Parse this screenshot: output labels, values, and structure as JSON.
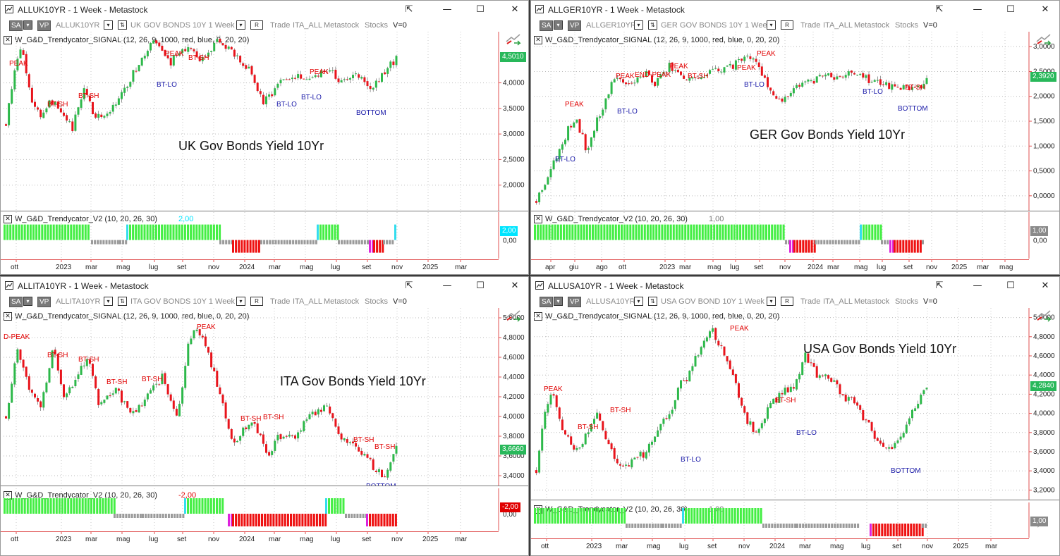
{
  "windows": [
    {
      "id": "uk",
      "title": "ALLUK10YR - 1 Week - Metastock",
      "symbol": "ALLUK10YR",
      "desc": "UK GOV BONDS 10Y  1 Week",
      "chart_title": "UK Gov Bonds Yield 10Yr",
      "signal_indicator": "W_G&D_Trendycator_SIGNAL   (12, 26, 9, 1000, red, blue, 0, 20, 20)",
      "v2_indicator": "W_G&D_Trendycator_V2   (10, 20, 26, 30)",
      "v2_value": "2,00",
      "v2_value_color": "#00e5ff",
      "v2_tag": "2,00",
      "v2_tag_color": "#00e5ff",
      "v2_axis": "0,00",
      "price_tag": "4,5010",
      "price_tag_color": "#28b85a",
      "y_ticks": [
        "4,0000",
        "3,5000",
        "3,0000",
        "2,5000",
        "2,0000"
      ],
      "x_ticks": [
        "ott",
        "2023",
        "mar",
        "mag",
        "lug",
        "set",
        "nov",
        "2024",
        "mar",
        "mag",
        "lug",
        "set",
        "nov",
        "2025",
        "mar"
      ],
      "annotations": [
        {
          "t": "PEAK",
          "c": "red"
        },
        {
          "t": "BT-SH",
          "c": "red"
        },
        {
          "t": "BT-SH",
          "c": "red"
        },
        {
          "t": "PEAK",
          "c": "red"
        },
        {
          "t": "BT-SH",
          "c": "red"
        },
        {
          "t": "BT-LO",
          "c": "blue"
        },
        {
          "t": "BT-LO",
          "c": "blue"
        },
        {
          "t": "PEAK",
          "c": "red"
        },
        {
          "t": "BT-LO",
          "c": "blue"
        },
        {
          "t": "BOTTOM",
          "c": "blue"
        }
      ]
    },
    {
      "id": "ger",
      "title": "ALLGER10YR - 1 Week - Metastock",
      "symbol": "ALLGER10YR",
      "desc": "GER GOV BONDS 10Y  1 Week",
      "chart_title": "GER Gov Bonds Yield 10Yr",
      "signal_indicator": "W_G&D_Trendycator_SIGNAL   (12, 26, 9, 1000, red, blue, 0, 20, 20)",
      "v2_indicator": "W_G&D_Trendycator_V2   (10, 20, 26, 30)",
      "v2_value": "1,00",
      "v2_value_color": "#777777",
      "v2_tag": "1,00",
      "v2_tag_color": "#8a8a8a",
      "v2_axis": "0,00",
      "price_tag": "2,3920",
      "price_tag_color": "#28b85a",
      "y_ticks": [
        "3,0000",
        "2,5000",
        "2,0000",
        "1,5000",
        "1,0000",
        "0,5000",
        "0,0000"
      ],
      "x_ticks": [
        "apr",
        "giu",
        "ago",
        "ott",
        "2023",
        "mar",
        "mag",
        "lug",
        "set",
        "nov",
        "2024",
        "mar",
        "mag",
        "lug",
        "set",
        "nov",
        "2025",
        "mar",
        "mag"
      ],
      "annotations": [
        {
          "t": "PEAK",
          "c": "red"
        },
        {
          "t": "BT-LO",
          "c": "blue"
        },
        {
          "t": "PEAK",
          "c": "red"
        },
        {
          "t": "END-PEAK",
          "c": "red"
        },
        {
          "t": "BT-LO",
          "c": "blue"
        },
        {
          "t": "PEAK",
          "c": "red"
        },
        {
          "t": "BT-SH",
          "c": "red"
        },
        {
          "t": "PEAK",
          "c": "red"
        },
        {
          "t": "PEAK",
          "c": "red"
        },
        {
          "t": "BT-LO",
          "c": "blue"
        },
        {
          "t": "BT-LO",
          "c": "blue"
        },
        {
          "t": "BT-SH",
          "c": "red"
        },
        {
          "t": "BOTTOM",
          "c": "blue"
        }
      ]
    },
    {
      "id": "ita",
      "title": "ALLITA10YR - 1 Week - Metastock",
      "symbol": "ALLITA10YR",
      "desc": "ITA GOV BONDS 10Y  1 Week",
      "chart_title": "ITA Gov Bonds Yield 10Yr",
      "signal_indicator": "W_G&D_Trendycator_SIGNAL   (12, 26, 9, 1000, red, blue, 0, 20, 20)",
      "v2_indicator": "W_G&D_Trendycator_V2   (10, 20, 26, 30)",
      "v2_value": "-2,00",
      "v2_value_color": "#e00000",
      "v2_tag": "-2,00",
      "v2_tag_color": "#e00000",
      "v2_axis": "0,00",
      "price_tag": "3,6660",
      "price_tag_color": "#28b85a",
      "y_ticks": [
        "5,0000",
        "4,8000",
        "4,6000",
        "4,4000",
        "4,2000",
        "4,0000",
        "3,8000",
        "3,6000",
        "3,4000"
      ],
      "x_ticks": [
        "ott",
        "2023",
        "mar",
        "mag",
        "lug",
        "set",
        "nov",
        "2024",
        "mar",
        "mag",
        "lug",
        "set",
        "nov",
        "2025",
        "mar"
      ],
      "annotations": [
        {
          "t": "D-PEAK",
          "c": "red"
        },
        {
          "t": "BT-SH",
          "c": "red"
        },
        {
          "t": "BT-SH",
          "c": "red"
        },
        {
          "t": "BT-SH",
          "c": "red"
        },
        {
          "t": "BT-SH",
          "c": "red"
        },
        {
          "t": "PEAK",
          "c": "red"
        },
        {
          "t": "BT-SH",
          "c": "red"
        },
        {
          "t": "BT-SH",
          "c": "red"
        },
        {
          "t": "BT-SH",
          "c": "red"
        },
        {
          "t": "BT-SH",
          "c": "red"
        },
        {
          "t": "BOTTOM",
          "c": "blue"
        }
      ]
    },
    {
      "id": "usa",
      "title": "ALLUSA10YR - 1 Week - Metastock",
      "symbol": "ALLUSA10YR",
      "desc": "USA GOV BOND 10Y  1 Week",
      "chart_title": "USA Gov Bonds Yield 10Yr",
      "signal_indicator": "W_G&D_Trendycator_SIGNAL   (12, 26, 9, 1000, red, blue, 0, 20, 20)",
      "v2_indicator": "W_G&D_Trendycator_V2   (10, 20, 26, 30)",
      "v2_value": "1,00",
      "v2_value_color": "#777777",
      "v2_tag": "1,00",
      "v2_tag_color": "#8a8a8a",
      "v2_axis": "0,00",
      "price_tag": "4,2840",
      "price_tag_color": "#28b85a",
      "y_ticks": [
        "5,0000",
        "4,8000",
        "4,6000",
        "4,4000",
        "4,2000",
        "4,0000",
        "3,8000",
        "3,6000",
        "3,4000",
        "3,2000"
      ],
      "x_ticks": [
        "ott",
        "2023",
        "mar",
        "mag",
        "lug",
        "set",
        "nov",
        "2024",
        "mar",
        "mag",
        "lug",
        "set",
        "nov",
        "2025",
        "mar"
      ],
      "annotations": [
        {
          "t": "PEAK",
          "c": "red"
        },
        {
          "t": "BT-SH",
          "c": "red"
        },
        {
          "t": "BT-SH",
          "c": "red"
        },
        {
          "t": "PEAK",
          "c": "red"
        },
        {
          "t": "BT-LO",
          "c": "blue"
        },
        {
          "t": "BT-SH",
          "c": "red"
        },
        {
          "t": "BT-LO",
          "c": "blue"
        },
        {
          "t": "BOTTOM",
          "c": "blue"
        }
      ]
    }
  ],
  "toolbar": {
    "sa": "SA",
    "vp": "VP",
    "r": "R",
    "trade": "Trade",
    "list": "ITA_ALL",
    "source": "Metastock",
    "type": "Stocks",
    "v": "V=0"
  },
  "window_buttons": {
    "popout": "⇱",
    "minimize": "—",
    "maximize": "☐",
    "close": "✕"
  },
  "colors": {
    "up": "#2db84a",
    "down": "#e8141c",
    "hist_green": "#44ee44",
    "hist_gray": "#9a9a9a",
    "hist_red": "#ee1111",
    "hist_cyan": "#33ddee",
    "hist_magenta": "#dd22dd"
  }
}
